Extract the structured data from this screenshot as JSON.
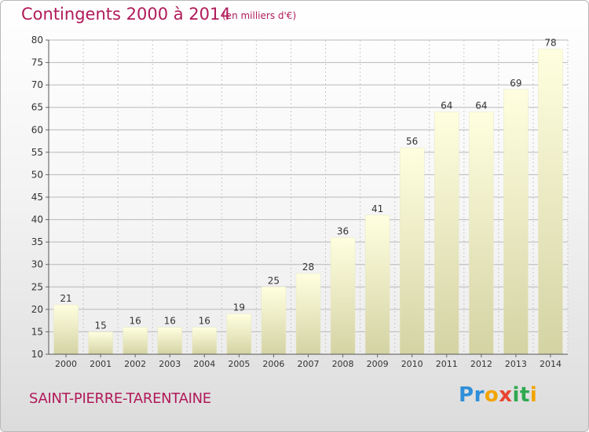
{
  "header": {
    "title": "Contingents 2000 à 2014",
    "subtitle": "(en milliers d'€)"
  },
  "footer": {
    "place": "SAINT-PIERRE-TARENTAINE",
    "logo_letters": [
      "P",
      "r",
      "o",
      "x",
      "i",
      "t",
      "i"
    ],
    "logo_colors": [
      "#2f8fd8",
      "#2f8fd8",
      "#f2a400",
      "#e8442f",
      "#2fa84f",
      "#2fa84f",
      "#f2a400"
    ]
  },
  "chart_data": {
    "type": "bar",
    "title": "Contingents 2000 à 2014",
    "subtitle": "(en milliers d'€)",
    "categories": [
      "2000",
      "2001",
      "2002",
      "2003",
      "2004",
      "2005",
      "2006",
      "2007",
      "2008",
      "2009",
      "2010",
      "2011",
      "2012",
      "2013",
      "2014"
    ],
    "values": [
      21,
      15,
      16,
      16,
      16,
      19,
      25,
      28,
      36,
      41,
      56,
      64,
      64,
      69,
      78
    ],
    "ylim": [
      10,
      80
    ],
    "yticks": [
      10,
      15,
      20,
      25,
      30,
      35,
      40,
      45,
      50,
      55,
      60,
      65,
      70,
      75,
      80
    ],
    "grid": true,
    "data_labels": true,
    "bar_color_top": "#ffffe0",
    "bar_color_bottom": "#d4d3a4"
  }
}
